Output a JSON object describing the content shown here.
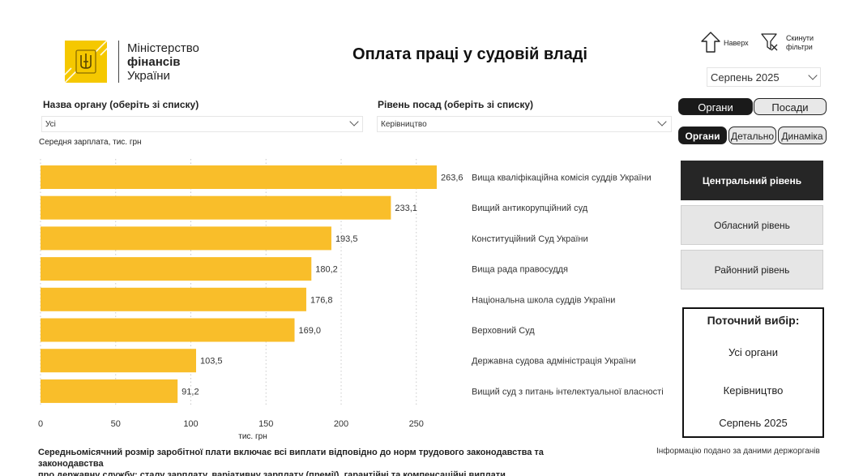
{
  "header": {
    "title": "Оплата праці у судовій владі",
    "logo_line1": "Міністерство",
    "logo_line2": "фінансів",
    "logo_line3": "України",
    "up_label": "Наверх",
    "reset_label_1": "Скинути",
    "reset_label_2": "фільтри"
  },
  "month_select": {
    "value": "Серпень 2025"
  },
  "filters": {
    "organ_label": "Назва органу (оберіть зі списку)",
    "organ_value": "Усі",
    "level_label": "Рівень посад (оберіть зі списку)",
    "level_value": "Керівництво"
  },
  "toggles": {
    "main": [
      "Органи",
      "Посади"
    ],
    "sub": [
      "Органи",
      "Детально",
      "Динаміка"
    ]
  },
  "levels": [
    "Центральний рівень",
    "Обласний рівень",
    "Районний рівень"
  ],
  "current_selection": {
    "title": "Поточний вибір:",
    "organ": "Усі органи",
    "level": "Керівництво",
    "month": "Серпень 2025"
  },
  "chart_data": {
    "type": "bar",
    "orientation": "horizontal",
    "title": "Середня зарплата, тис. грн",
    "xlabel": "тис. грн",
    "ylabel": "",
    "xlim": [
      0,
      280
    ],
    "xticks": [
      0,
      50,
      100,
      150,
      200,
      250
    ],
    "grid": true,
    "categories": [
      "Вища кваліфікаційна комісія суддів України",
      "Вищий антикорупційний суд",
      "Конституційний Суд України",
      "Вища рада правосуддя",
      "Національна школа суддів України",
      "Верховний Суд",
      "Державна судова адміністрація України",
      "Вищий суд з питань інтелектуальної власності"
    ],
    "values": [
      263.6,
      233.1,
      193.5,
      180.2,
      176.8,
      169.0,
      103.5,
      91.2
    ],
    "value_labels": [
      "263,6",
      "233,1",
      "193,5",
      "180,2",
      "176,8",
      "169,0",
      "103,5",
      "91,2"
    ],
    "bar_color": "#f9be2a"
  },
  "footer": {
    "note_line1": "Середньомісячний розмір заробітної плати включає всі виплати відповідно до норм трудового законодавства та законодавства",
    "note_line2": "про державну службу: сталу зарплату, варіативну зарплату (премії), гарантійні та компенсаційні виплати",
    "source": "Інформацію подано за даними держорганів"
  }
}
